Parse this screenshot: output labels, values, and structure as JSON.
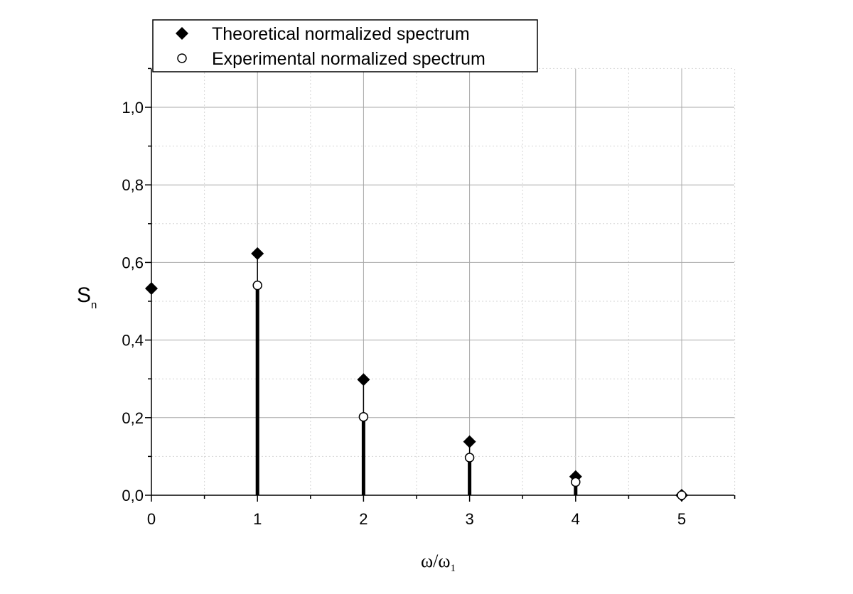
{
  "chart_data": {
    "type": "scatter",
    "xlabel": "ω/ω",
    "xlabel_sub": "1",
    "ylabel": "S",
    "ylabel_sub": "n",
    "xlim": [
      0,
      5.5
    ],
    "ylim": [
      0,
      1.1
    ],
    "x_ticks": [
      0,
      1,
      2,
      3,
      4,
      5
    ],
    "x_tick_labels": [
      "0",
      "1",
      "2",
      "3",
      "4",
      "5"
    ],
    "y_ticks": [
      0,
      0.2,
      0.4,
      0.6,
      0.8,
      1.0
    ],
    "y_tick_labels": [
      "0,0",
      "0,2",
      "0,4",
      "0,6",
      "0,8",
      "1,0"
    ],
    "grid": true,
    "legend_position": "top-left",
    "series": [
      {
        "name": "Theoretical normalized spectrum",
        "marker": "filled-diamond",
        "stems": "thin",
        "x": [
          0,
          1,
          2,
          3,
          4,
          5
        ],
        "y": [
          0.533,
          0.623,
          0.298,
          0.138,
          0.048,
          0.0
        ]
      },
      {
        "name": "Experimental normalized spectrum",
        "marker": "open-circle",
        "stems": "thick",
        "x": [
          1,
          2,
          3,
          4,
          5
        ],
        "y": [
          0.541,
          0.202,
          0.097,
          0.034,
          0.0
        ]
      }
    ]
  }
}
